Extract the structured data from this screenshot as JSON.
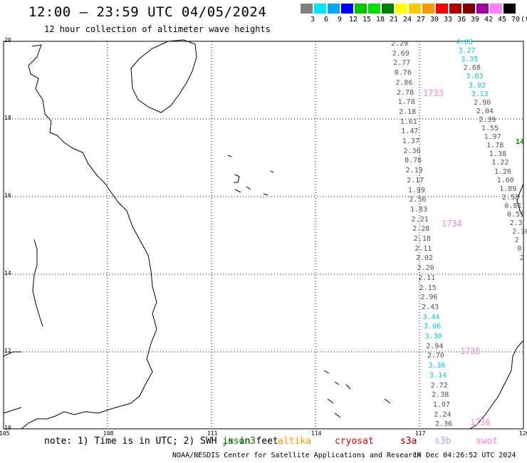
{
  "title": "12:00 – 23:59 UTC 04/05/2024",
  "subtitle": "12 hour collection of altimeter wave heights",
  "colorbar": {
    "unit": "(ft)",
    "labels": [
      "3",
      "6",
      "9",
      "12",
      "15",
      "18",
      "21",
      "24",
      "27",
      "30",
      "33",
      "36",
      "39",
      "42",
      "45",
      "70"
    ],
    "colors": [
      "#7f7f7f",
      "#00e5ff",
      "#00a8ff",
      "#0000ff",
      "#00c800",
      "#00e000",
      "#008000",
      "#ffff00",
      "#ffc800",
      "#ff9600",
      "#ff0000",
      "#b40000",
      "#800000",
      "#a000a0",
      "#ff7fff",
      "#000000"
    ]
  },
  "lat_labels": [
    "20",
    "18",
    "16",
    "14",
    "12",
    "10"
  ],
  "lon_labels": [
    "105",
    "108",
    "111",
    "114",
    "117",
    "120"
  ],
  "track1": [
    [
      "2.29",
      "g"
    ],
    [
      "2.69",
      "g"
    ],
    [
      "2.77",
      "g"
    ],
    [
      "0.76",
      "g"
    ],
    [
      "2.86",
      "g"
    ],
    [
      "2.78",
      "g"
    ],
    [
      "1.78",
      "g"
    ],
    [
      "2.18",
      "g"
    ],
    [
      "1.61",
      "g"
    ],
    [
      "1.47",
      "g"
    ],
    [
      "1.37",
      "g"
    ],
    [
      "2.36",
      "g"
    ],
    [
      "0.76",
      "g"
    ],
    [
      "2.19",
      "g"
    ],
    [
      "2.17",
      "g"
    ],
    [
      "1.99",
      "g"
    ],
    [
      "2.56",
      "g"
    ],
    [
      "1.83",
      "g"
    ],
    [
      "2.21",
      "g"
    ],
    [
      "2.28",
      "g"
    ],
    [
      "2.18",
      "g"
    ],
    [
      "2.11",
      "g"
    ],
    [
      "2.02",
      "g"
    ],
    [
      "2.20",
      "g"
    ],
    [
      "2.11",
      "g"
    ],
    [
      "2.15",
      "g"
    ],
    [
      "2.96",
      "g"
    ],
    [
      "2.43",
      "g"
    ],
    [
      "3.44",
      "c"
    ],
    [
      "3.06",
      "c"
    ],
    [
      "3.30",
      "c"
    ],
    [
      "2.94",
      "g"
    ],
    [
      "2.70",
      "g"
    ],
    [
      "3.36",
      "c"
    ],
    [
      "3.14",
      "c"
    ],
    [
      "2.72",
      "g"
    ],
    [
      "2.38",
      "g"
    ],
    [
      "1.07",
      "g"
    ],
    [
      "2.24",
      "g"
    ],
    [
      "2.36",
      "g"
    ]
  ],
  "track2": [
    [
      "4.03",
      "c"
    ],
    [
      "3.27",
      "c"
    ],
    [
      "3.35",
      "c"
    ],
    [
      "2.68",
      "g"
    ],
    [
      "3.03",
      "c"
    ],
    [
      "3.92",
      "c"
    ],
    [
      "3.13",
      "c"
    ],
    [
      "2.90",
      "g"
    ],
    [
      "2.04",
      "g"
    ],
    [
      "2.39",
      "g"
    ],
    [
      "1.55",
      "g"
    ],
    [
      "1.97",
      "g"
    ],
    [
      "1.78",
      "g"
    ],
    [
      "1.38",
      "g"
    ],
    [
      "1.22",
      "g"
    ],
    [
      "1.26",
      "g"
    ],
    [
      "1.60",
      "g"
    ],
    [
      "1.89",
      "g"
    ],
    [
      "2.58",
      "g"
    ],
    [
      "0.81",
      "g"
    ],
    [
      "0.59",
      "g"
    ],
    [
      "2.3",
      "g"
    ],
    [
      "2.30",
      "g"
    ],
    [
      "2",
      "g"
    ],
    [
      "0.",
      "g"
    ],
    [
      "2",
      "g"
    ]
  ],
  "track_edge": "14",
  "pass_labels": [
    "1733",
    "1734",
    "1735",
    "1736"
  ],
  "note": "note:  1) Time is in UTC;  2) SWH is in feet",
  "satellites": [
    {
      "name": "jason3",
      "color": "#008800"
    },
    {
      "name": "altika",
      "color": "#ff9600"
    },
    {
      "name": "cryosat",
      "color": "#e00000"
    },
    {
      "name": "s3a",
      "color": "#a00000"
    },
    {
      "name": "s3b",
      "color": "#b0a0ff"
    },
    {
      "name": "swot",
      "color": "#ff7fd6"
    }
  ],
  "credit": "NOAA/NESDIS Center for Satellite Applications and Research",
  "timestamp": "14 Dec 04:26:52 UTC 2024"
}
